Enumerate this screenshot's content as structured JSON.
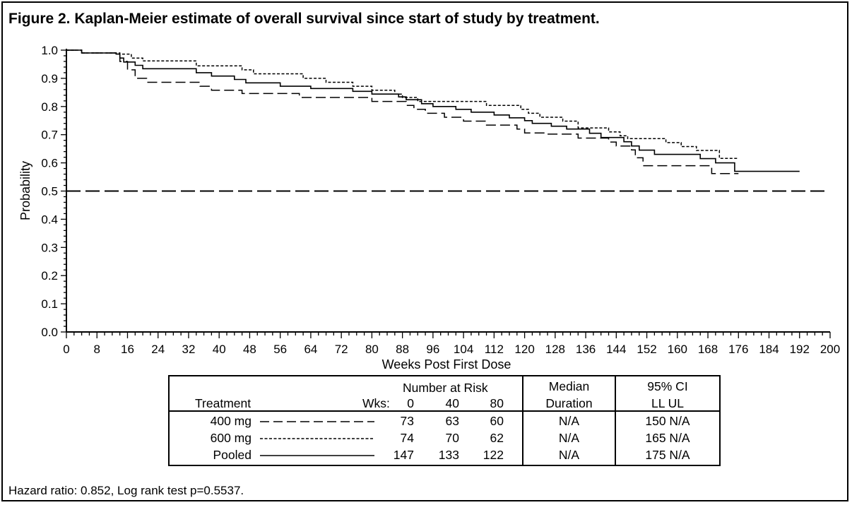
{
  "figure_title": "Figure 2. Kaplan-Meier estimate of overall survival since start of study by treatment.",
  "footnote": "Hazard ratio: 0.852, Log rank test p=0.5537.",
  "colors": {
    "line": "#000000",
    "background": "#ffffff"
  },
  "chart_data": {
    "type": "line",
    "subtype": "kaplan-meier step",
    "title": "",
    "xlabel": "Weeks Post First Dose",
    "ylabel": "Probability",
    "xlim": [
      0,
      200
    ],
    "ylim": [
      0,
      1
    ],
    "x_ticks": [
      "0",
      "8",
      "16",
      "24",
      "32",
      "40",
      "48",
      "56",
      "64",
      "72",
      "80",
      "88",
      "96",
      "104",
      "112",
      "120",
      "128",
      "136",
      "144",
      "152",
      "160",
      "168",
      "176",
      "184",
      "192",
      "200"
    ],
    "y_ticks": [
      "0.0",
      "0.1",
      "0.2",
      "0.3",
      "0.4",
      "0.5",
      "0.6",
      "0.7",
      "0.8",
      "0.9",
      "1.0"
    ],
    "reference_line": {
      "y": 0.5,
      "style": "long-dash"
    },
    "series": [
      {
        "name": "400 mg",
        "style": "long-dash",
        "points": [
          [
            0,
            1.0
          ],
          [
            4,
            0.99
          ],
          [
            13,
            0.986
          ],
          [
            14,
            0.96
          ],
          [
            16,
            0.93
          ],
          [
            18,
            0.9
          ],
          [
            21,
            0.886
          ],
          [
            35,
            0.872
          ],
          [
            38,
            0.858
          ],
          [
            46,
            0.846
          ],
          [
            61,
            0.832
          ],
          [
            80,
            0.818
          ],
          [
            89,
            0.804
          ],
          [
            91,
            0.79
          ],
          [
            94,
            0.776
          ],
          [
            99,
            0.762
          ],
          [
            104,
            0.748
          ],
          [
            110,
            0.734
          ],
          [
            118,
            0.72
          ],
          [
            120,
            0.706
          ],
          [
            126,
            0.702
          ],
          [
            134,
            0.688
          ],
          [
            142,
            0.674
          ],
          [
            144,
            0.66
          ],
          [
            148,
            0.646
          ],
          [
            149,
            0.618
          ],
          [
            151,
            0.59
          ],
          [
            169,
            0.562
          ],
          [
            176,
            0.562
          ]
        ]
      },
      {
        "name": "600 mg",
        "style": "short-dash",
        "points": [
          [
            0,
            1.0
          ],
          [
            4,
            0.99
          ],
          [
            14,
            0.986
          ],
          [
            17,
            0.972
          ],
          [
            20,
            0.962
          ],
          [
            34,
            0.944
          ],
          [
            46,
            0.93
          ],
          [
            49,
            0.916
          ],
          [
            62,
            0.9
          ],
          [
            68,
            0.886
          ],
          [
            75,
            0.872
          ],
          [
            80,
            0.858
          ],
          [
            86,
            0.844
          ],
          [
            88,
            0.832
          ],
          [
            92,
            0.818
          ],
          [
            110,
            0.804
          ],
          [
            119,
            0.79
          ],
          [
            121,
            0.776
          ],
          [
            124,
            0.762
          ],
          [
            130,
            0.748
          ],
          [
            134,
            0.724
          ],
          [
            142,
            0.71
          ],
          [
            145,
            0.696
          ],
          [
            147,
            0.686
          ],
          [
            157,
            0.672
          ],
          [
            161,
            0.658
          ],
          [
            165,
            0.644
          ],
          [
            171,
            0.616
          ],
          [
            176,
            0.616
          ]
        ]
      },
      {
        "name": "Pooled",
        "style": "solid",
        "points": [
          [
            0,
            1.0
          ],
          [
            4,
            0.99
          ],
          [
            13,
            0.986
          ],
          [
            14,
            0.972
          ],
          [
            15,
            0.958
          ],
          [
            18,
            0.946
          ],
          [
            20,
            0.934
          ],
          [
            34,
            0.92
          ],
          [
            38,
            0.908
          ],
          [
            44,
            0.896
          ],
          [
            47,
            0.884
          ],
          [
            56,
            0.872
          ],
          [
            64,
            0.864
          ],
          [
            75,
            0.854
          ],
          [
            80,
            0.844
          ],
          [
            87,
            0.834
          ],
          [
            89,
            0.824
          ],
          [
            93,
            0.81
          ],
          [
            96,
            0.8
          ],
          [
            102,
            0.79
          ],
          [
            106,
            0.78
          ],
          [
            112,
            0.77
          ],
          [
            116,
            0.76
          ],
          [
            120,
            0.75
          ],
          [
            122,
            0.74
          ],
          [
            127,
            0.73
          ],
          [
            131,
            0.72
          ],
          [
            137,
            0.705
          ],
          [
            140,
            0.69
          ],
          [
            146,
            0.675
          ],
          [
            148,
            0.66
          ],
          [
            150,
            0.645
          ],
          [
            154,
            0.63
          ],
          [
            166,
            0.615
          ],
          [
            170,
            0.6
          ],
          [
            175,
            0.57
          ],
          [
            192,
            0.57
          ]
        ]
      }
    ]
  },
  "risk_table": {
    "header": {
      "treatment": "Treatment",
      "number_at_risk": "Number at Risk",
      "wks": "Wks:",
      "week_cols": [
        "0",
        "40",
        "80"
      ],
      "median_line1": "Median",
      "median_line2": "Duration",
      "ci_line1": "95% CI",
      "ci_line2": "LL UL"
    },
    "rows": [
      {
        "treatment": "400 mg",
        "line_style": "long-dash",
        "counts": [
          "73",
          "63",
          "60"
        ],
        "median": "N/A",
        "ci": "150 N/A"
      },
      {
        "treatment": "600 mg",
        "line_style": "short-dash",
        "counts": [
          "74",
          "70",
          "62"
        ],
        "median": "N/A",
        "ci": "165 N/A"
      },
      {
        "treatment": "Pooled",
        "line_style": "solid",
        "counts": [
          "147",
          "133",
          "122"
        ],
        "median": "N/A",
        "ci": "175 N/A"
      }
    ]
  }
}
